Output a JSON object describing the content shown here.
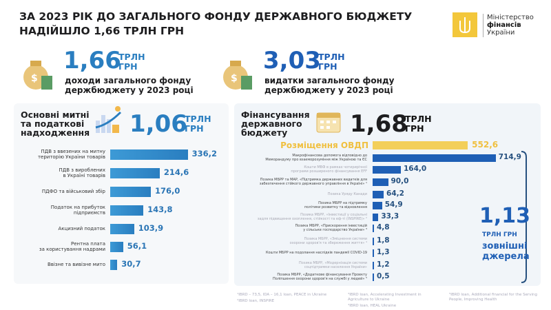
{
  "title": [
    "ЗА 2023 РІК ДО ЗАГАЛЬНОГО ФОНДУ ДЕРЖАВНОГО БЮДЖЕТУ",
    "НАДІЙШЛО 1,66 ТРЛН ГРН"
  ],
  "logo": {
    "line1": "Міністерство",
    "line2": "фінансів",
    "line3": "України",
    "color": "#f3c73b"
  },
  "revenue": {
    "value": "1,66",
    "unit1": "ТРЛН",
    "unit2": "ГРН",
    "caption1": "доходи загального фонду",
    "caption2": "держбюджету у 2023 році"
  },
  "expenditure": {
    "value": "3,03",
    "unit1": "ТРЛН",
    "unit2": "ГРН",
    "caption1": "видатки загального фонду",
    "caption2": "держбюджету у 2023 році"
  },
  "taxes": {
    "heading": [
      "Основні митні",
      "та податкові",
      "надходження"
    ],
    "value": "1,06",
    "unit1": "ТРЛН",
    "unit2": "ГРН"
  },
  "financing": {
    "heading": [
      "Фінансування",
      "державного",
      "бюджету"
    ],
    "value": "1,68",
    "unit1": "ТРЛН",
    "unit2": "ГРН",
    "external_value": "1,13",
    "external_unit": "ТРЛН ГРН",
    "external_label": [
      "зовнішні",
      "джерела"
    ]
  },
  "colors": {
    "accent_blue": "#2a7ec0",
    "dark_blue": "#1f5fb5",
    "gold": "#f3c73b"
  },
  "chart_data": [
    {
      "type": "bar",
      "orientation": "horizontal",
      "categories": [
        [
          "ПДВ з ввезених на митну",
          "територію України товарів"
        ],
        [
          "ПДВ з вироблених",
          "в Україні товарів"
        ],
        [
          "ПДФО та військовий збір"
        ],
        [
          "Податок на прибуток",
          "підприємств"
        ],
        [
          "Акцизний податок"
        ],
        [
          "Рентна плата",
          "за користування надрами"
        ],
        [
          "Ввізне та вивізне мито"
        ]
      ],
      "values": [
        336.2,
        214.6,
        176.0,
        143.8,
        103.9,
        56.1,
        30.7
      ],
      "labels": [
        "336,2",
        "214,6",
        "176,0",
        "143,8",
        "103,9",
        "56,1",
        "30,7"
      ]
    },
    {
      "type": "bar",
      "orientation": "horizontal",
      "categories": [
        [
          "Розміщення ОВДП"
        ],
        [
          "Макрофінансова допомога відповідно до",
          "Меморандуму про взаєморозуміння між Україною та ЄС"
        ],
        [
          "Кошти МВФ в рамках чотирирічної",
          "програми розширеного фінансування EFF"
        ],
        [
          "Позика МБРР та МАР, «Підтримка державних видатків для",
          "забезпечення стійкого державного управління в Україні» ¹"
        ],
        [
          "Позика Уряду Канади"
        ],
        [
          "Позика МБРР на підтримку",
          "політики розвитку та відновлення"
        ],
        [
          "Позика МБРР, «Інвестиції у соціальні",
          "задля підвищення охоплення, стійкості та еф-ті (INSPIRE)» ²"
        ],
        [
          "Позика МБРР, «Прискорення інвестицій",
          "у сільське господарство України» ³"
        ],
        [
          "Позика МБРР, «Зміцнення системи",
          "охорони здоров'я та збереження життя» ⁴"
        ],
        [
          "Кошти МБРР на подолання наслідків пандемії COVID-19"
        ],
        [
          "Позика МБРР, «Модернізація системи",
          "соцпідтримки населення України»"
        ],
        [
          "Позика МБРР, «Додаткове фінансування Проекту",
          "Поліпшення охорони здоров'я на службі у людей» ⁵"
        ]
      ],
      "values": [
        552.6,
        714.9,
        164.0,
        90.0,
        64.2,
        54.9,
        33.3,
        4.8,
        1.8,
        1.3,
        1.2,
        0.5
      ],
      "labels": [
        "552,6",
        "714,9",
        "164,0",
        "90,0",
        "64,2",
        "54,9",
        "33,3",
        "4,8",
        "1,8",
        "1,3",
        "1,2",
        "0,5"
      ],
      "faint": [
        false,
        false,
        true,
        false,
        true,
        false,
        true,
        false,
        true,
        false,
        true,
        false
      ]
    }
  ],
  "footnotes": [
    "¹IBRD – 73,5, IDA – 16,1 loan, PEACE in Ukraine",
    "²IBRD loan, INSPIRE",
    "³IBRD loan, Accelerating Investment in Agriculture to Ukraine",
    "⁴IBRD loan, HEAL Ukraine",
    "⁵IBRD loan, Additional financial for the Serving People, Improving Health"
  ]
}
